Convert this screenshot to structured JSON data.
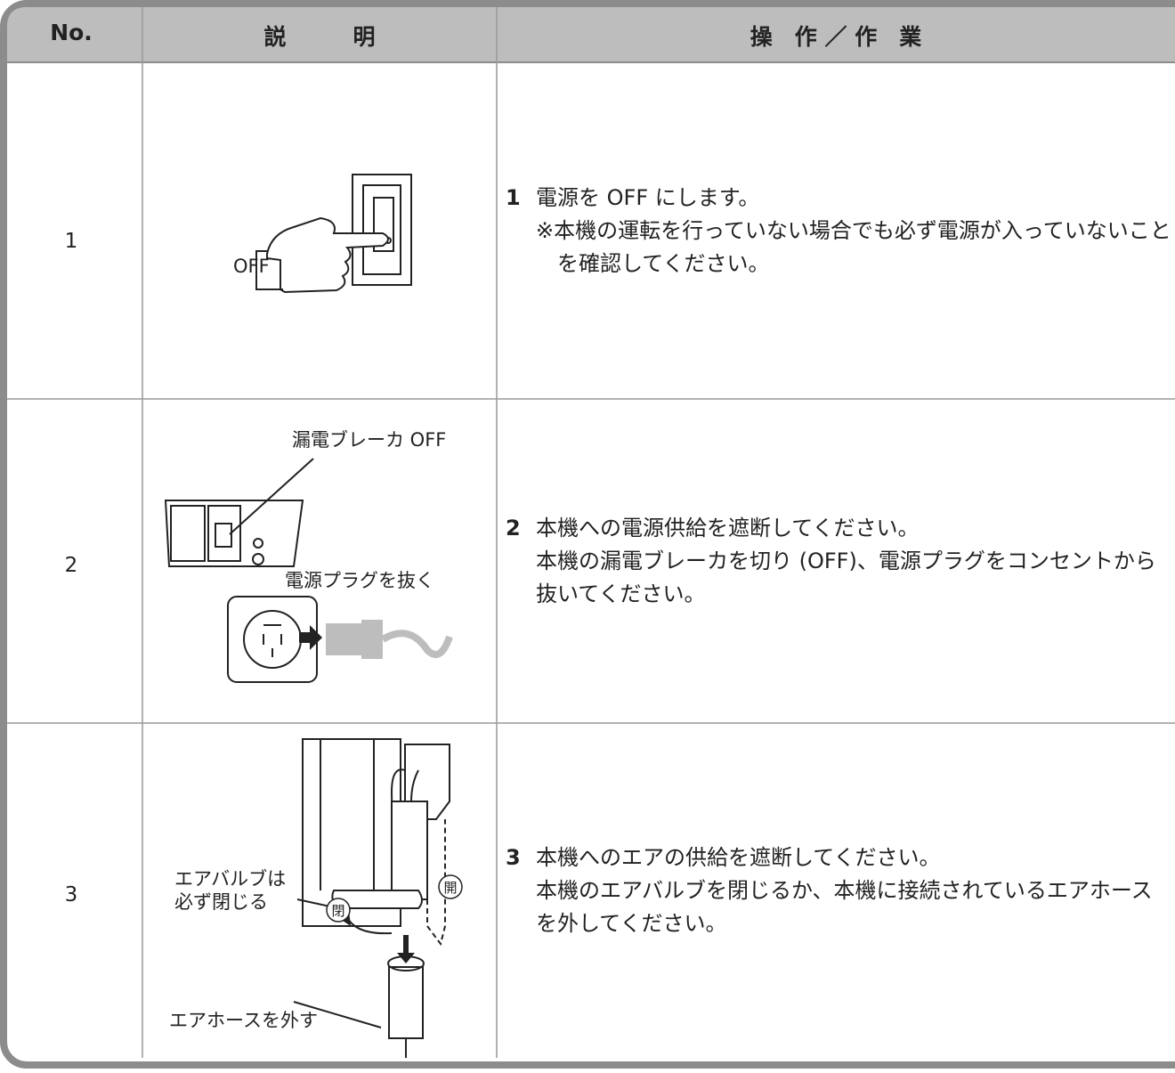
{
  "header": {
    "no": "No.",
    "description": "説　　　明",
    "operation": "操　作 ／ 作　業"
  },
  "rows": [
    {
      "no": "1",
      "illustration": {
        "labels": [
          "OFF"
        ]
      },
      "step": "1",
      "lines": [
        "電源を OFF にします。",
        "※本機の運転を行っていない場合でも必ず電源が入っていないことを確認してください。"
      ]
    },
    {
      "no": "2",
      "illustration": {
        "labels": [
          "漏電ブレーカ OFF",
          "電源プラグを抜く"
        ]
      },
      "step": "2",
      "lines": [
        "本機への電源供給を遮断してください。",
        "本機の漏電ブレーカを切り (OFF)、電源プラグをコンセントから抜いてください。"
      ]
    },
    {
      "no": "3",
      "illustration": {
        "labels": [
          "エアバルブは",
          "必ず閉じる",
          "閉",
          "開",
          "エアホースを外す"
        ]
      },
      "step": "3",
      "lines": [
        "本機へのエアの供給を遮断してください。",
        "本機のエアバルブを閉じるか、本機に接続されているエアホースを外してください。"
      ]
    }
  ]
}
